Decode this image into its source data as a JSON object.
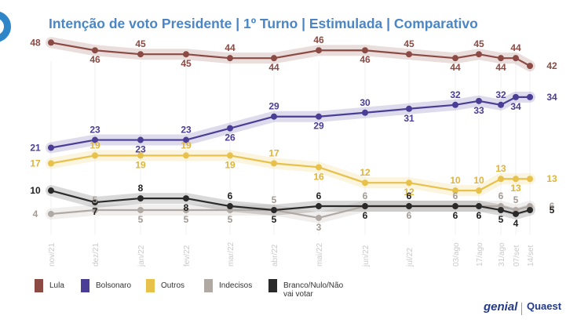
{
  "title": "Intenção de voto Presidente | 1º Turno | Estimulada | Comparativo",
  "colors": {
    "title": "#4a86c5",
    "lula": "#8b4a44",
    "bolsonaro": "#4a3d96",
    "outros": "#e8c14a",
    "indecisos": "#b0a8a2",
    "branco": "#2a2a2a",
    "axis_label": "#c9c9c9",
    "logo": "#2e86c9"
  },
  "legend": [
    {
      "key": "lula",
      "label": "Lula"
    },
    {
      "key": "bolsonaro",
      "label": "Bolsonaro"
    },
    {
      "key": "outros",
      "label": "Outros"
    },
    {
      "key": "indecisos",
      "label": "Indecisos"
    },
    {
      "key": "branco",
      "label": "Branco/Nulo/Não\nvai votar"
    }
  ],
  "brands": {
    "genial": "genial",
    "quaest": "Quaest"
  },
  "chart_data": {
    "type": "line",
    "x": [
      "nov/21",
      "dez/21",
      "jan/22",
      "fev/22",
      "mar/22",
      "abr/22",
      "mai/22",
      "jun/22",
      "jul/22",
      "03/ago",
      "17/ago",
      "31/ago",
      "07/set",
      "14/set"
    ],
    "series": [
      {
        "name": "Lula",
        "key": "lula",
        "values": [
          48,
          46,
          45,
          45,
          44,
          44,
          46,
          46,
          45,
          44,
          45,
          44,
          44,
          42
        ]
      },
      {
        "name": "Bolsonaro",
        "key": "bolsonaro",
        "values": [
          21,
          23,
          23,
          23,
          26,
          29,
          29,
          30,
          31,
          32,
          33,
          32,
          34,
          34
        ]
      },
      {
        "name": "Outros",
        "key": "outros",
        "values": [
          17,
          19,
          19,
          19,
          19,
          17,
          16,
          12,
          12,
          10,
          10,
          13,
          13,
          13
        ]
      },
      {
        "name": "Indecisos",
        "key": "indecisos",
        "values": [
          4,
          5,
          5,
          5,
          5,
          5,
          3,
          6,
          6,
          6,
          6,
          6,
          5,
          6
        ]
      },
      {
        "name": "Branco/Nulo/Não vai votar",
        "key": "branco",
        "values": [
          10,
          7,
          8,
          8,
          6,
          5,
          6,
          6,
          6,
          6,
          6,
          5,
          4,
          5
        ]
      }
    ],
    "ylim": [
      0,
      50
    ],
    "grid": false,
    "legend_position": "bottom-left"
  }
}
